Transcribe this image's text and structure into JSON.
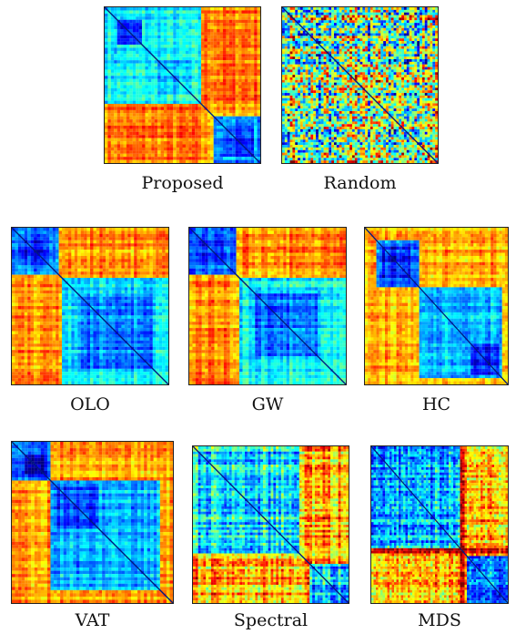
{
  "panels": [
    {
      "id": "proposed",
      "label": "Proposed",
      "structure": "two blue blocks along diagonal, large top-left and smaller bottom-right"
    },
    {
      "id": "random",
      "label": "Random",
      "structure": "unstructured noise"
    },
    {
      "id": "olo",
      "label": "OLO",
      "structure": "small blue block top-left, larger light-blue block with darker sub-blocks"
    },
    {
      "id": "gw",
      "label": "GW",
      "structure": "small blue block top-left, larger light-blue block with darker sub-blocks"
    },
    {
      "id": "hc",
      "label": "HC",
      "structure": "yellow border, blue block upper-left, blue block lower-right"
    },
    {
      "id": "vat",
      "label": "VAT",
      "structure": "small dark block top-left, large blue block"
    },
    {
      "id": "spectral",
      "label": "Spectral",
      "structure": "striped light-blue block, small striped block bottom-right"
    },
    {
      "id": "mds",
      "label": "MDS",
      "structure": "large speckled blue region, red cross line, small blue block bottom-right"
    }
  ],
  "colors": {
    "low": "#1010c0",
    "mid_low": "#30c8ff",
    "mid": "#f0e020",
    "high": "#f08010",
    "very_high": "#d03010"
  }
}
